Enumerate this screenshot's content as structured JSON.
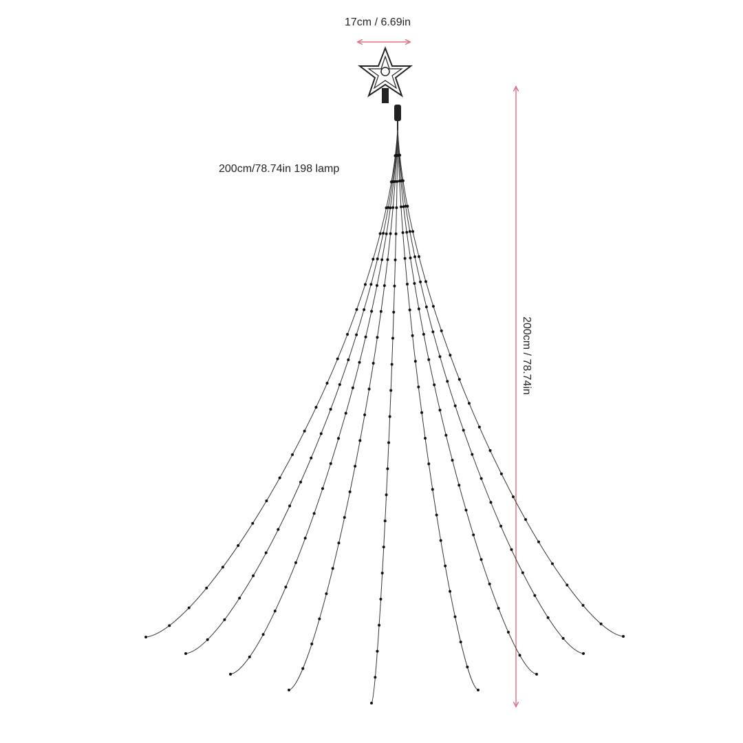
{
  "labels": {
    "star_width": "17cm / 6.69in",
    "strand_info": "200cm/78.74in  198 lamp",
    "height": "200cm / 78.74in"
  },
  "colors": {
    "dimension_line": "#d9536b",
    "strand": "#333333",
    "bulb": "#111111"
  },
  "icons": {
    "topper": "star-icon"
  }
}
